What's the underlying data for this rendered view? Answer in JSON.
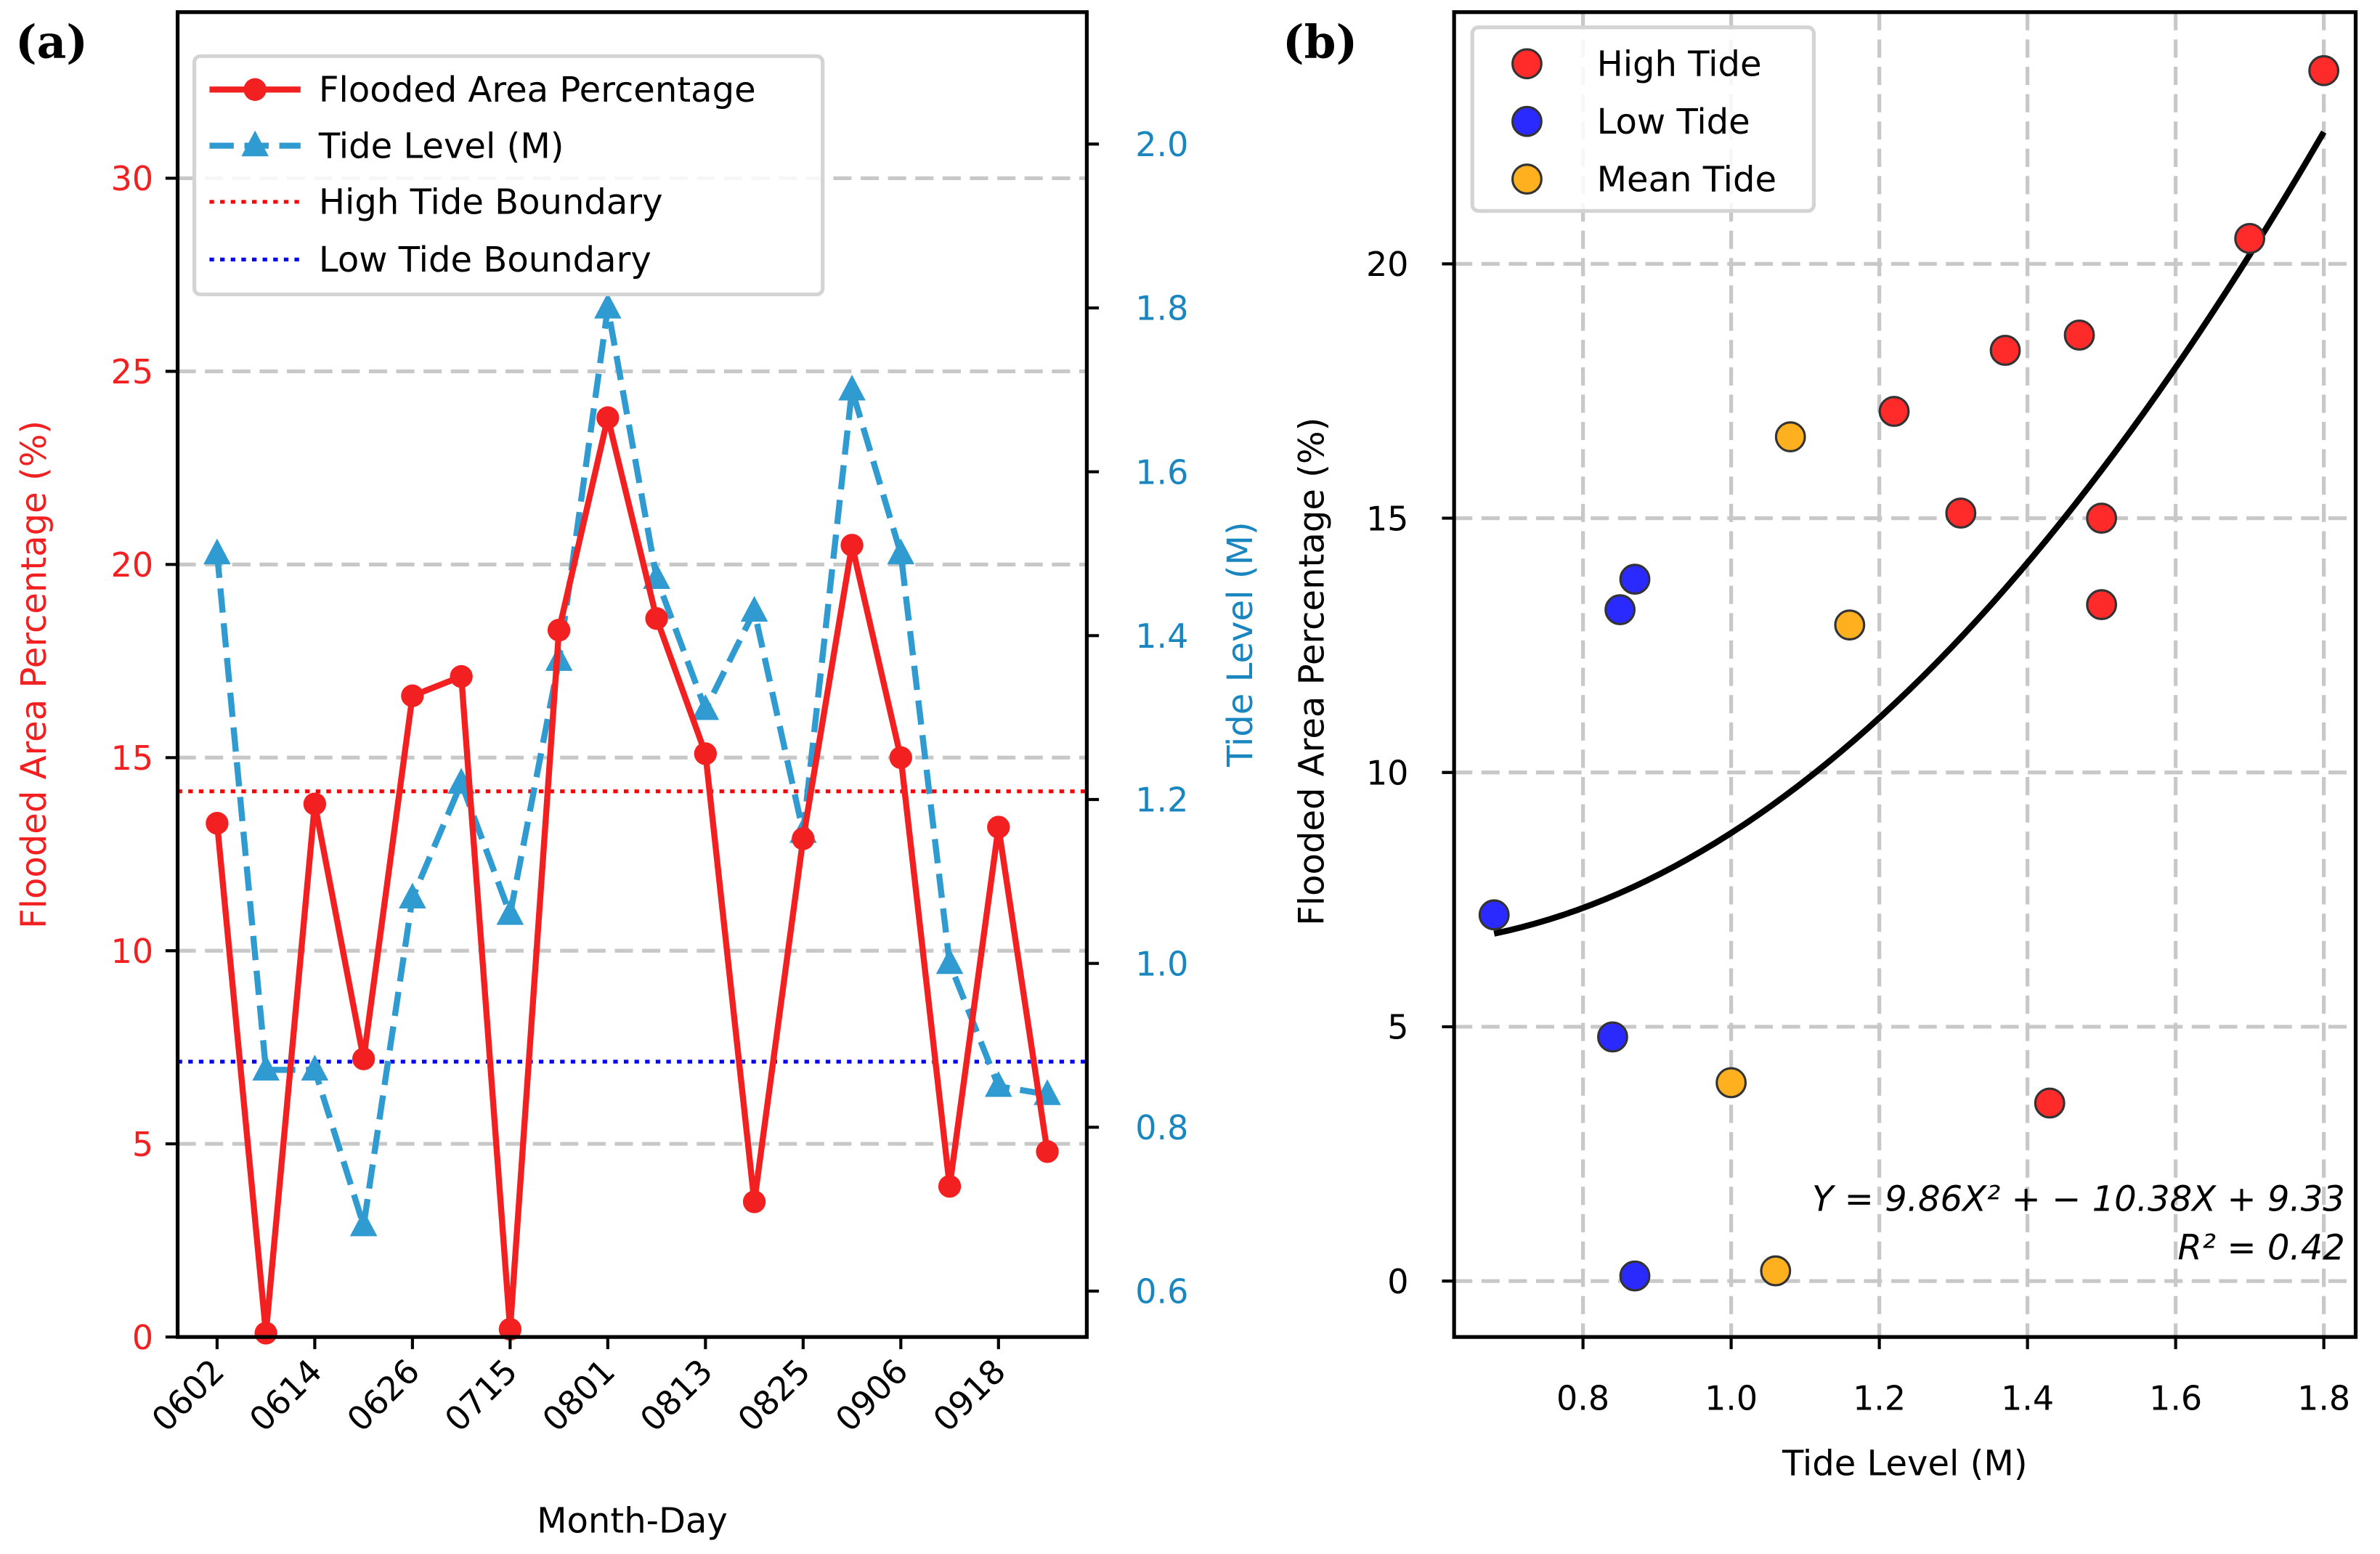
{
  "chart_data": [
    {
      "panel": "(a)",
      "type": "line",
      "xlabel": "Month-Day",
      "ylabel": "Flooded Area Percentage (%)",
      "y2label": "Tide Level (M)",
      "x_tick_labels": [
        "0602",
        "0614",
        "0626",
        "0715",
        "0801",
        "0813",
        "0825",
        "0906",
        "0918"
      ],
      "x_tick_indices": [
        0,
        2,
        4,
        6,
        8,
        10,
        12,
        14,
        16
      ],
      "ylim": [
        0,
        34.3
      ],
      "yticks": [
        0,
        5,
        10,
        15,
        20,
        25,
        30
      ],
      "y2lim": [
        0.544,
        2.161
      ],
      "y2ticks": [
        "0.6",
        "0.8",
        "1.0",
        "1.2",
        "1.4",
        "1.6",
        "1.8",
        "2.0"
      ],
      "series": [
        {
          "name": "Flooded Area Percentage",
          "axis": "left",
          "color": "#f22020",
          "values": [
            13.3,
            0.1,
            13.8,
            7.2,
            16.6,
            17.1,
            0.2,
            18.3,
            23.8,
            18.6,
            15.1,
            3.5,
            12.9,
            20.5,
            15.0,
            3.9,
            13.2,
            4.8
          ]
        },
        {
          "name": "Tide Level (M)",
          "axis": "right",
          "color": "#2f9bd0",
          "values": [
            1.5,
            0.87,
            0.87,
            0.68,
            1.08,
            1.22,
            1.06,
            1.37,
            1.8,
            1.47,
            1.31,
            1.43,
            1.16,
            1.7,
            1.5,
            1.0,
            0.85,
            0.84
          ]
        }
      ],
      "hlines": [
        {
          "name": "High Tide Boundary",
          "tide_value": 1.21,
          "color": "#ff0000"
        },
        {
          "name": "Low Tide Boundary",
          "tide_value": 0.88,
          "color": "#0000ff"
        }
      ],
      "legend": "top-left",
      "grid": "y dashed"
    },
    {
      "panel": "(b)",
      "type": "scatter",
      "xlabel": "Tide Level (M)",
      "ylabel": "Flooded Area Percentage (%)",
      "xlim": [
        0.626,
        1.843
      ],
      "ylim": [
        -1.1,
        24.95
      ],
      "xticks": [
        "0.8",
        "1.0",
        "1.2",
        "1.4",
        "1.6",
        "1.8"
      ],
      "yticks": [
        "0",
        "5",
        "10",
        "15",
        "20"
      ],
      "series": [
        {
          "name": "High Tide",
          "color": "#ff2a2a",
          "points": [
            [
              1.5,
              13.3
            ],
            [
              1.22,
              17.1
            ],
            [
              1.37,
              18.3
            ],
            [
              1.8,
              23.8
            ],
            [
              1.47,
              18.6
            ],
            [
              1.31,
              15.1
            ],
            [
              1.43,
              3.5
            ],
            [
              1.7,
              20.5
            ],
            [
              1.5,
              15.0
            ]
          ]
        },
        {
          "name": "Low Tide",
          "color": "#2a2aff",
          "points": [
            [
              0.87,
              0.1
            ],
            [
              0.87,
              13.8
            ],
            [
              0.68,
              7.2
            ],
            [
              0.85,
              13.2
            ],
            [
              0.84,
              4.8
            ]
          ]
        },
        {
          "name": "Mean Tide",
          "color": "#ffb01f",
          "points": [
            [
              1.08,
              16.6
            ],
            [
              1.06,
              0.2
            ],
            [
              1.16,
              12.9
            ],
            [
              1.0,
              3.9
            ]
          ]
        }
      ],
      "fit": {
        "a": 9.86,
        "b": -10.38,
        "c": 9.33,
        "x_range": [
          0.68,
          1.8
        ]
      },
      "equation": "Y = 9.86X² + − 10.38X + 9.33",
      "r2_label": "R² = 0.42",
      "legend": "top-left",
      "grid": "both dashed"
    }
  ]
}
